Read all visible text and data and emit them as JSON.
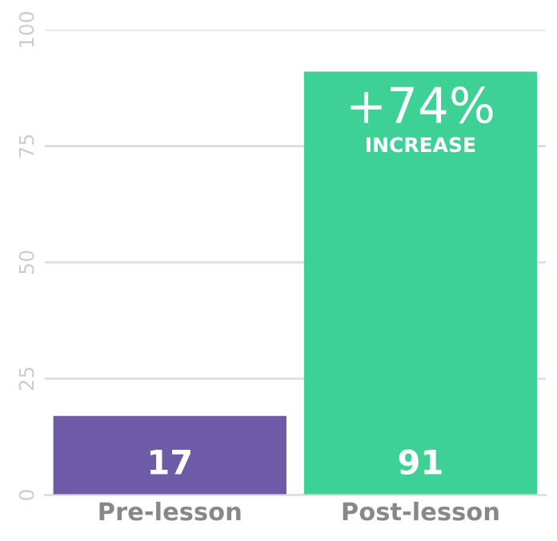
{
  "chart_data": {
    "type": "bar",
    "categories": [
      "Pre-lesson",
      "Post-lesson"
    ],
    "values": [
      17,
      91
    ],
    "colors": [
      "#6e5ba8",
      "#3dd195"
    ],
    "ylim": [
      0,
      100
    ],
    "yticks": [
      0,
      25,
      50,
      75,
      100
    ],
    "grid": "y",
    "data_labels": true,
    "annotations": [
      "+74%",
      "INCREASE"
    ]
  }
}
